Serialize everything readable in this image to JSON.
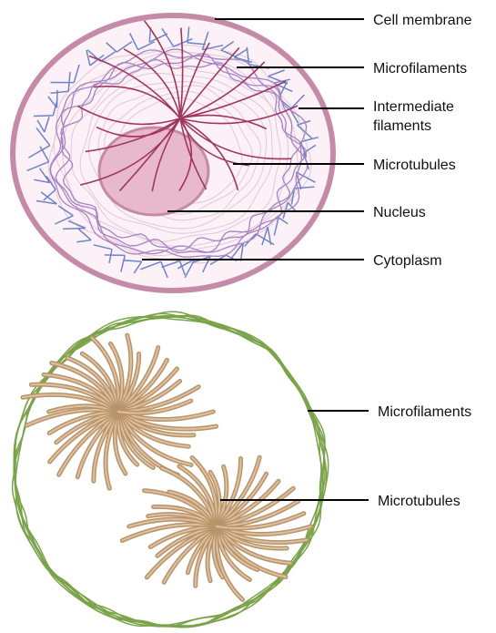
{
  "figure": {
    "top_panel": {
      "labels": {
        "cell_membrane": "Cell membrane",
        "microfilaments": "Microfilaments",
        "intermediate_line1": "Intermediate",
        "intermediate_line2": "filaments",
        "microtubules": "Microtubules",
        "nucleus": "Nucleus",
        "cytoplasm": "Cytoplasm"
      }
    },
    "bottom_panel": {
      "labels": {
        "microfilaments": "Microfilaments",
        "microtubules": "Microtubules"
      }
    }
  },
  "colors": {
    "membrane": "#c58aa8",
    "cytoplasm": "#fbf1f6",
    "nucleus_fill": "#e8b8cc",
    "nucleus_stroke": "#c58aa8",
    "microtubule_top": "#a0365f",
    "microfilament_top": "#a883c4",
    "intermediate": "#6e84c6",
    "faint_fibers": "#e3c8d6",
    "actin_green": "#7ba34a",
    "tubule_brown": "#b9936a",
    "tubule_brown_light": "#dcc0a0",
    "leader": "#000000"
  }
}
